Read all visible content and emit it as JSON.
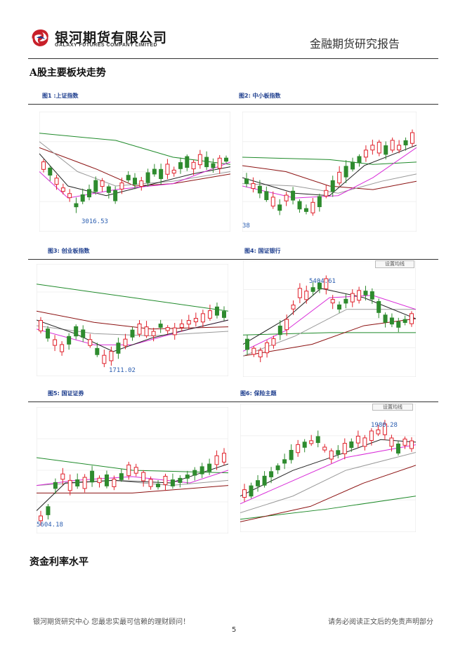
{
  "header": {
    "logo_cn": "银河期货有限公司",
    "logo_en": "GALAXY FUTURES COMPANY LIMITED",
    "report_title": "金融期货研究报告"
  },
  "section1_title": "A股主要板块走势",
  "section2_title": "资金利率水平",
  "figures": [
    {
      "caption": "图1 :上证指数",
      "annotation": "3016.53"
    },
    {
      "caption": "图2: 中小板指数",
      "annotation": "38"
    },
    {
      "caption": "图3: 创业板指数",
      "annotation": "1711.02"
    },
    {
      "caption": "图4: 国证银行",
      "annotation": "5404.61",
      "button": "设置均线"
    },
    {
      "caption": "图5: 国证证券",
      "annotation": "5604.18"
    },
    {
      "caption": "图6: 保险主题",
      "annotation": "1980.28",
      "button": "设置均线"
    }
  ],
  "footer": {
    "left": "银河期货研究中心 您最忠实最可信赖的理财顾问！",
    "right": "请务必阅读正文后的免责声明部分",
    "page": "5"
  },
  "colors": {
    "up": "#e0202a",
    "down": "#2e8b2e",
    "ma_black": "#222222",
    "ma_magenta": "#d82bd8",
    "ma_grey": "#999999",
    "ma_green": "#1f8a2a",
    "ma_darkred": "#8b1010",
    "annotation": "#2a5db0"
  }
}
